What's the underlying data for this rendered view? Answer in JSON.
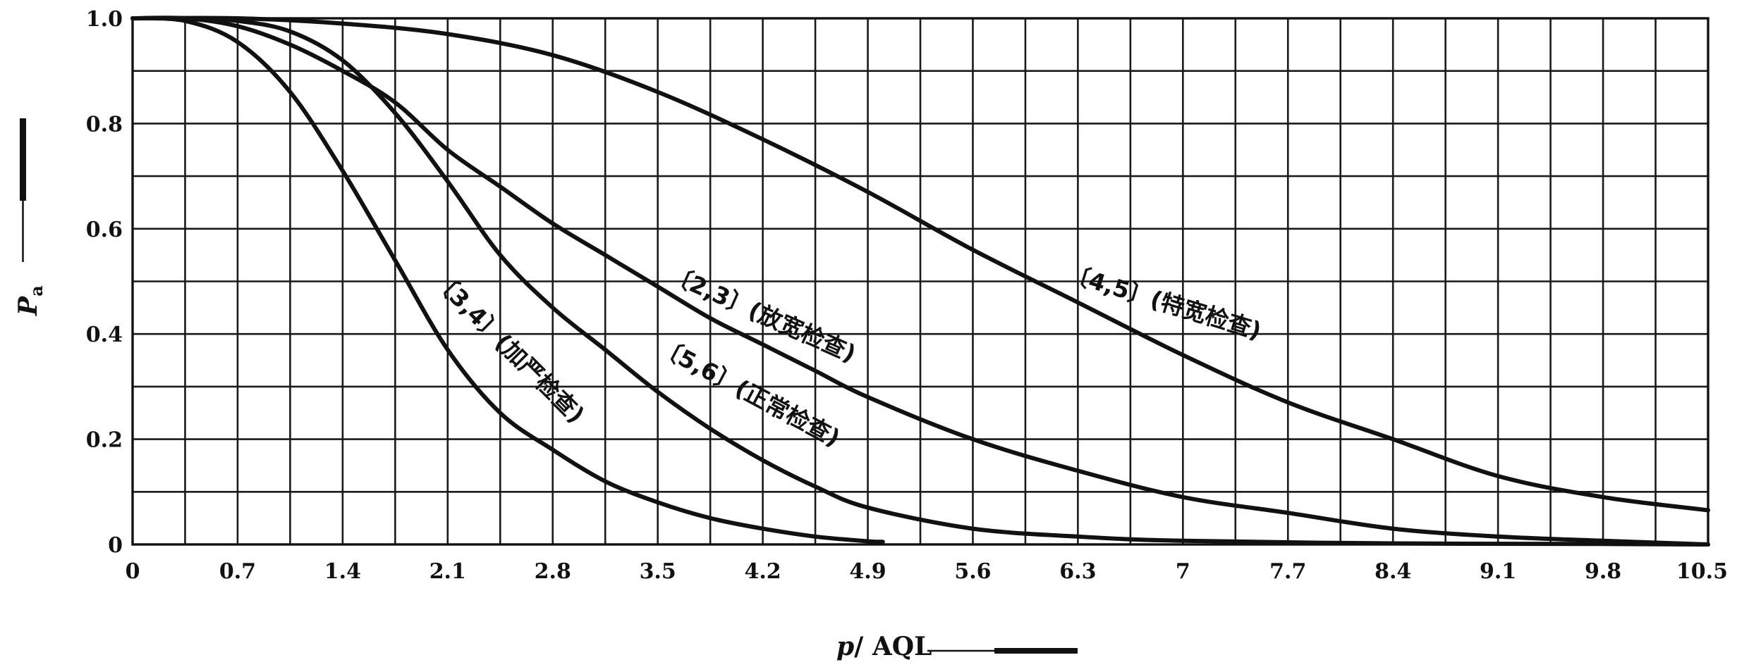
{
  "chart_data": {
    "type": "line",
    "title": "",
    "x_axis": {
      "label_var": "p",
      "label_rest": "/ AQL",
      "range": [
        0,
        10.5
      ],
      "minor_step": 0.35,
      "ticks": [
        0,
        0.7,
        1.4,
        2.1,
        2.8,
        3.5,
        4.2,
        4.9,
        5.6,
        6.3,
        7,
        7.7,
        8.4,
        9.1,
        9.8,
        10.5
      ],
      "tick_labels": [
        "0",
        "0.7",
        "1.4",
        "2.1",
        "2.8",
        "3.5",
        "4.2",
        "4.9",
        "5.6",
        "6.3",
        "7",
        "7.7",
        "8.4",
        "9.1",
        "9.8",
        "10.5"
      ]
    },
    "y_axis": {
      "label_var": "P",
      "label_sub": "a",
      "range": [
        0,
        1.0
      ],
      "minor_step": 0.1,
      "ticks": [
        0,
        0.2,
        0.4,
        0.6,
        0.8,
        1.0
      ],
      "tick_labels": [
        "0",
        "0.2",
        "0.4",
        "0.6",
        "0.8",
        "1.0"
      ]
    },
    "grid": true,
    "legend": "none",
    "series": [
      {
        "id": "tightened",
        "label": "〔3,4〕(加严检查)",
        "x": [
          0,
          0.35,
          0.7,
          1.05,
          1.4,
          1.75,
          2.1,
          2.45,
          2.8,
          3.15,
          3.5,
          3.85,
          4.2,
          4.55,
          4.9,
          5.0
        ],
        "y": [
          1.0,
          0.995,
          0.955,
          0.86,
          0.71,
          0.54,
          0.37,
          0.25,
          0.18,
          0.12,
          0.08,
          0.05,
          0.03,
          0.015,
          0.006,
          0.005
        ]
      },
      {
        "id": "normal",
        "label": "〔5,6〕(正常检查)",
        "x": [
          0,
          0.35,
          0.7,
          1.05,
          1.4,
          1.75,
          2.1,
          2.45,
          2.8,
          3.15,
          3.5,
          3.85,
          4.2,
          4.55,
          4.9,
          5.6,
          6.3,
          7.0,
          8.4,
          9.8,
          10.5
        ],
        "y": [
          1.0,
          1.0,
          0.995,
          0.975,
          0.92,
          0.82,
          0.69,
          0.55,
          0.45,
          0.37,
          0.29,
          0.22,
          0.16,
          0.11,
          0.07,
          0.03,
          0.015,
          0.007,
          0.002,
          0.001,
          0.0
        ]
      },
      {
        "id": "reduced",
        "label": "〔2,3〕(放宽检查)",
        "x": [
          0,
          0.35,
          0.7,
          1.05,
          1.4,
          1.75,
          2.1,
          2.45,
          2.8,
          3.15,
          3.5,
          3.85,
          4.2,
          4.55,
          4.9,
          5.6,
          6.3,
          7.0,
          7.7,
          8.4,
          9.1,
          9.8,
          10.5
        ],
        "y": [
          1.0,
          1.0,
          0.985,
          0.95,
          0.9,
          0.84,
          0.75,
          0.68,
          0.61,
          0.55,
          0.49,
          0.43,
          0.38,
          0.33,
          0.28,
          0.2,
          0.14,
          0.09,
          0.06,
          0.03,
          0.015,
          0.007,
          0.0
        ]
      },
      {
        "id": "special-reduced",
        "label": "〔4,5〕(特宽检查)",
        "x": [
          0,
          0.7,
          1.4,
          2.1,
          2.8,
          3.5,
          4.2,
          4.9,
          5.6,
          6.3,
          7.0,
          7.7,
          8.4,
          9.1,
          9.8,
          10.5
        ],
        "y": [
          1.0,
          1.0,
          0.99,
          0.97,
          0.93,
          0.86,
          0.77,
          0.67,
          0.56,
          0.46,
          0.36,
          0.27,
          0.2,
          0.13,
          0.09,
          0.065
        ]
      }
    ]
  }
}
